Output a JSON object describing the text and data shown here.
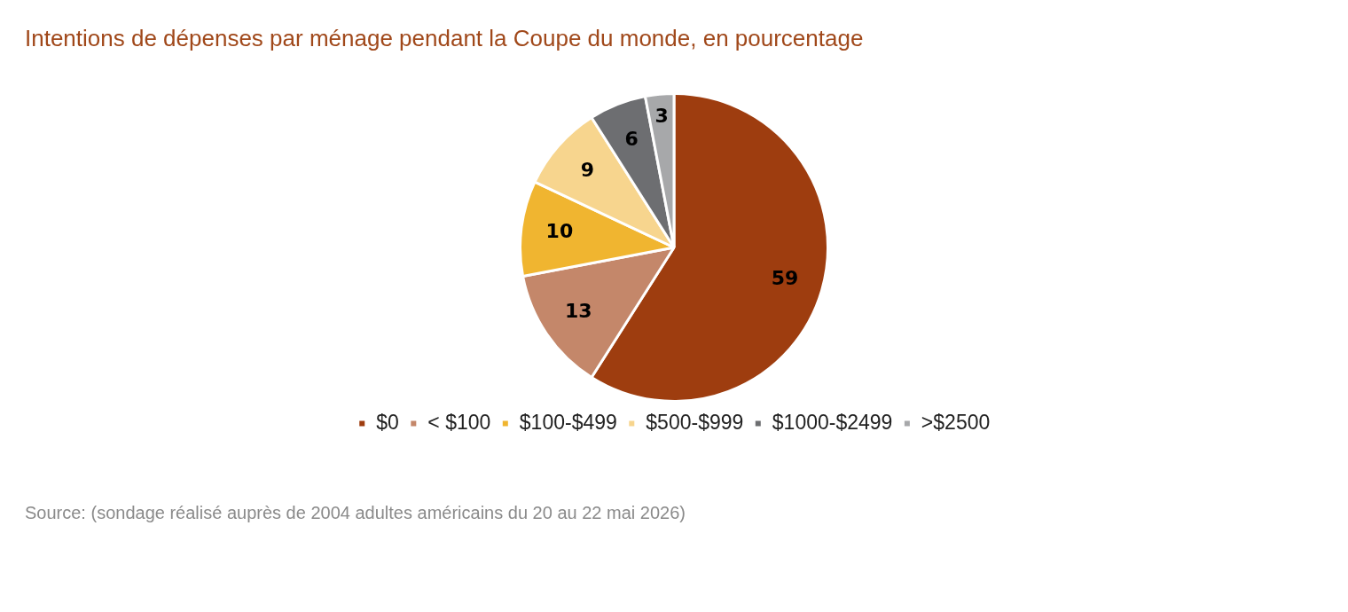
{
  "chart_data": {
    "type": "pie",
    "title": "Intentions de dépenses par ménage pendant la Coupe du monde, en pourcentage",
    "categories": [
      "$0",
      "< $100",
      "$100-$499",
      "$500-$999",
      "$1000-$2499",
      ">$2500"
    ],
    "values": [
      59,
      13,
      10,
      9,
      6,
      3
    ],
    "colors": [
      "#9e3d0f",
      "#c4876a",
      "#f0b530",
      "#f7d58e",
      "#6d6e71",
      "#a7a8aa"
    ],
    "data_labels": true,
    "legend": "bottom",
    "annotations": [
      "Source: (sondage réalisé auprès de 2004 adultes américains du 20 au 22 mai 2026)"
    ]
  }
}
